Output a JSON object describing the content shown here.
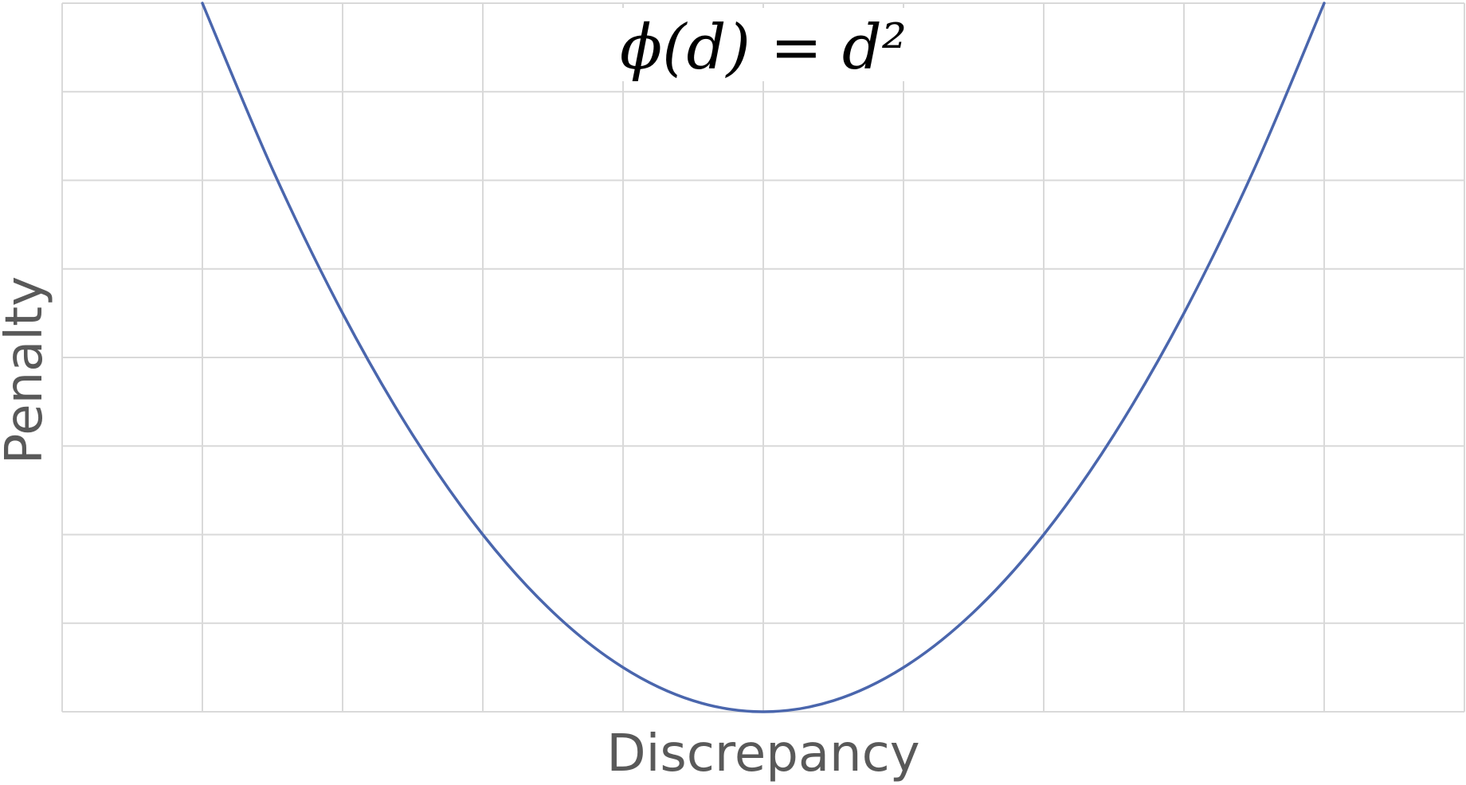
{
  "chart_data": {
    "type": "line",
    "title": "ϕ(d) = d²",
    "xlabel": "Discrepancy",
    "ylabel": "Penalty",
    "xlim": [
      -5,
      5
    ],
    "ylim": [
      0,
      16
    ],
    "x_grid_step": 1,
    "y_grid_step": 2,
    "grid": true,
    "legend": "none",
    "series": [
      {
        "color": "#4a66ad",
        "x": [
          -4,
          -3.5,
          -3,
          -2.5,
          -2,
          -1.5,
          -1,
          -0.5,
          0,
          0.5,
          1,
          1.5,
          2,
          2.5,
          3,
          3.5,
          4
        ],
        "y": [
          16,
          12.25,
          9,
          6.25,
          4,
          2.25,
          1,
          0.25,
          0,
          0.25,
          1,
          2.25,
          4,
          6.25,
          9,
          12.25,
          16
        ]
      }
    ]
  }
}
